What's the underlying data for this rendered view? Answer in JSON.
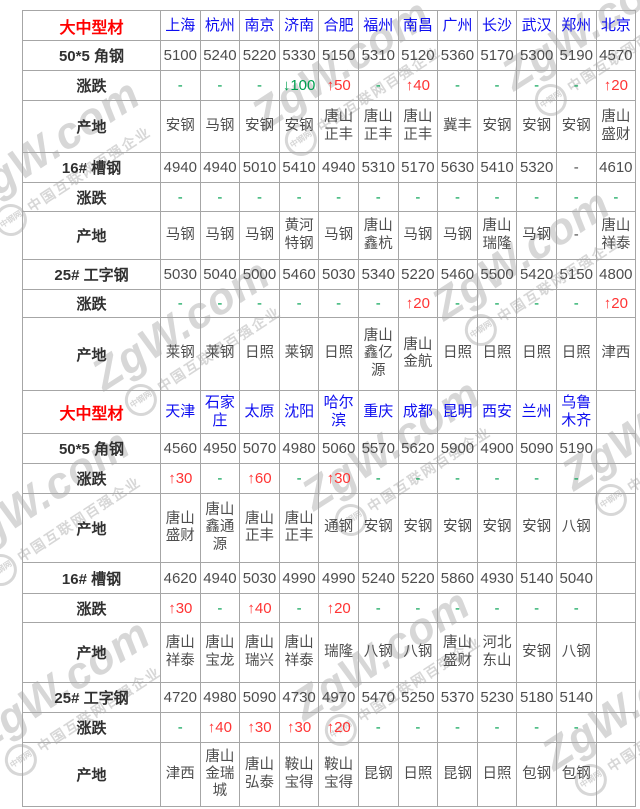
{
  "watermark": {
    "brand": "ZgW.com",
    "logo": "中钢网",
    "slogan": "中国互联网百强企业"
  },
  "sections": [
    {
      "title": "大中型材",
      "cities": [
        "上海",
        "杭州",
        "南京",
        "济南",
        "合肥",
        "福州",
        "南昌",
        "广州",
        "长沙",
        "武汉",
        "郑州",
        "北京"
      ],
      "rows": [
        {
          "label": "50*5 角钢",
          "type": "price",
          "values": [
            "5100",
            "5240",
            "5220",
            "5330",
            "5150",
            "5310",
            "5120",
            "5360",
            "5170",
            "5300",
            "5190",
            "4570"
          ]
        },
        {
          "label": "涨跌",
          "type": "change",
          "values": [
            "-",
            "-",
            "-",
            "↓100",
            "↑50",
            "-",
            "↑40",
            "-",
            "-",
            "-",
            "-",
            "↑20"
          ]
        },
        {
          "label": "产地",
          "type": "origin",
          "values": [
            "安钢",
            "马钢",
            "安钢",
            "安钢",
            "唐山正丰",
            "唐山正丰",
            "唐山正丰",
            "冀丰",
            "安钢",
            "安钢",
            "安钢",
            "唐山盛财"
          ]
        },
        {
          "label": "16# 槽钢",
          "type": "price",
          "values": [
            "4940",
            "4940",
            "5010",
            "5410",
            "4940",
            "5310",
            "5170",
            "5630",
            "5410",
            "5320",
            "-",
            "4610"
          ]
        },
        {
          "label": "涨跌",
          "type": "change",
          "values": [
            "-",
            "-",
            "-",
            "-",
            "-",
            "-",
            "-",
            "-",
            "-",
            "-",
            "-",
            "-"
          ]
        },
        {
          "label": "产地",
          "type": "origin",
          "values": [
            "马钢",
            "马钢",
            "马钢",
            "黄河特钢",
            "马钢",
            "唐山鑫杭",
            "马钢",
            "马钢",
            "唐山瑞隆",
            "马钢",
            "-",
            "唐山祥泰"
          ]
        },
        {
          "label": "25# 工字钢",
          "type": "price",
          "values": [
            "5030",
            "5040",
            "5000",
            "5460",
            "5030",
            "5340",
            "5220",
            "5460",
            "5500",
            "5420",
            "5150",
            "4800"
          ]
        },
        {
          "label": "涨跌",
          "type": "change",
          "values": [
            "-",
            "-",
            "-",
            "-",
            "-",
            "-",
            "↑20",
            "-",
            "-",
            "-",
            "-",
            "↑20"
          ]
        },
        {
          "label": "产地",
          "type": "origin",
          "values": [
            "莱钢",
            "莱钢",
            "日照",
            "莱钢",
            "日照",
            "唐山鑫亿源",
            "唐山金航",
            "日照",
            "日照",
            "日照",
            "日照",
            "津西"
          ]
        }
      ]
    },
    {
      "title": "大中型材",
      "cities": [
        "天津",
        "石家庄",
        "太原",
        "沈阳",
        "哈尔滨",
        "重庆",
        "成都",
        "昆明",
        "西安",
        "兰州",
        "乌鲁木齐",
        ""
      ],
      "rows": [
        {
          "label": "50*5 角钢",
          "type": "price",
          "values": [
            "4560",
            "4950",
            "5070",
            "4980",
            "5060",
            "5570",
            "5620",
            "5900",
            "4900",
            "5090",
            "5190",
            ""
          ]
        },
        {
          "label": "涨跌",
          "type": "change",
          "values": [
            "↑30",
            "-",
            "↑60",
            "-",
            "↑30",
            "-",
            "-",
            "-",
            "-",
            "-",
            "-",
            ""
          ]
        },
        {
          "label": "产地",
          "type": "origin",
          "values": [
            "唐山盛财",
            "唐山鑫通源",
            "唐山正丰",
            "唐山正丰",
            "通钢",
            "安钢",
            "安钢",
            "安钢",
            "安钢",
            "安钢",
            "八钢",
            ""
          ]
        },
        {
          "label": "16# 槽钢",
          "type": "price",
          "values": [
            "4620",
            "4940",
            "5030",
            "4990",
            "4990",
            "5240",
            "5220",
            "5860",
            "4930",
            "5140",
            "5040",
            ""
          ]
        },
        {
          "label": "涨跌",
          "type": "change",
          "values": [
            "↑30",
            "-",
            "↑40",
            "-",
            "↑20",
            "-",
            "-",
            "-",
            "-",
            "-",
            "-",
            ""
          ]
        },
        {
          "label": "产地",
          "type": "origin",
          "values": [
            "唐山祥泰",
            "唐山宝龙",
            "唐山瑞兴",
            "唐山祥泰",
            "瑞隆",
            "八钢",
            "八钢",
            "唐山盛财",
            "河北东山",
            "安钢",
            "八钢",
            ""
          ]
        },
        {
          "label": "25# 工字钢",
          "type": "price",
          "values": [
            "4720",
            "4980",
            "5090",
            "4730",
            "4970",
            "5470",
            "5250",
            "5370",
            "5230",
            "5180",
            "5140",
            ""
          ]
        },
        {
          "label": "涨跌",
          "type": "change",
          "values": [
            "-",
            "↑40",
            "↑30",
            "↑30",
            "↑20",
            "-",
            "-",
            "-",
            "-",
            "-",
            "-",
            ""
          ]
        },
        {
          "label": "产地",
          "type": "origin",
          "values": [
            "津西",
            "唐山金瑞城",
            "唐山弘泰",
            "鞍山宝得",
            "鞍山宝得",
            "昆钢",
            "日照",
            "昆钢",
            "日照",
            "包钢",
            "包钢",
            ""
          ]
        }
      ]
    }
  ],
  "colors": {
    "section_title": "#ff0000",
    "city_link": "#0d0df0",
    "value_text": "#4d4d4d",
    "change_up": "#ff3434",
    "change_down": "#00a050",
    "border": "#a6a6a6",
    "watermark": "#d7d7d7"
  }
}
